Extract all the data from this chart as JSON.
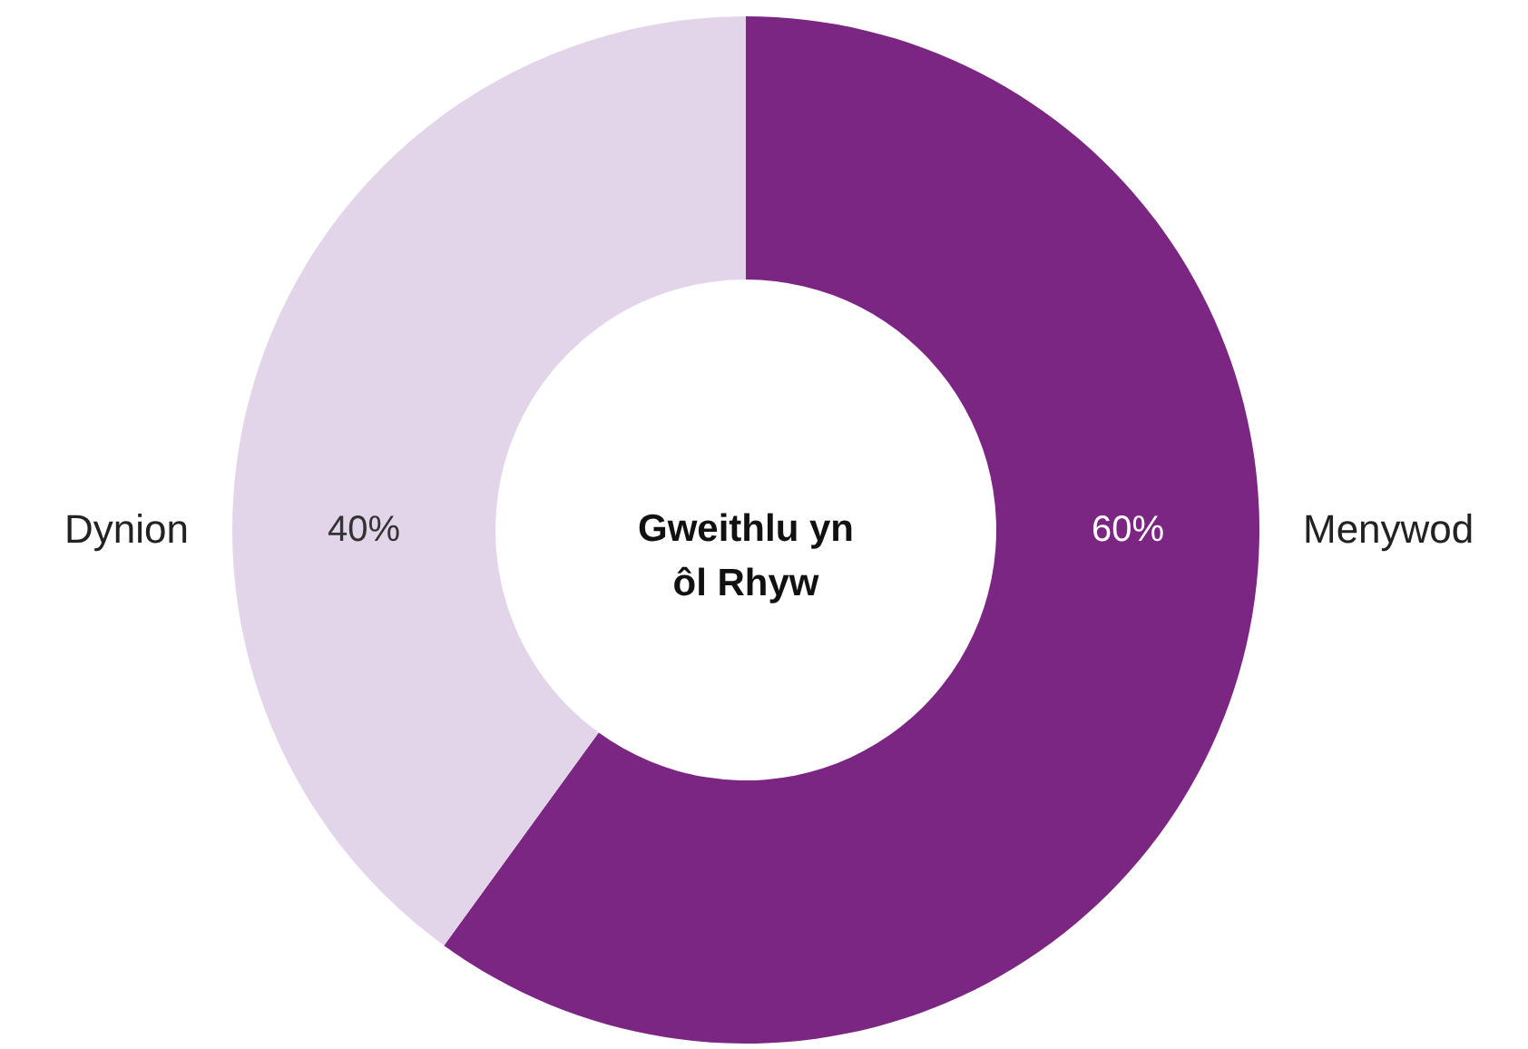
{
  "chart_data": {
    "type": "donut",
    "title": "Gweithlu yn ôl Rhyw",
    "categories": [
      "Menywod",
      "Dynion"
    ],
    "values": [
      60,
      40
    ],
    "value_labels": [
      "60%",
      "40%"
    ],
    "colors": [
      "#7b2682",
      "#e2d5ea"
    ]
  }
}
